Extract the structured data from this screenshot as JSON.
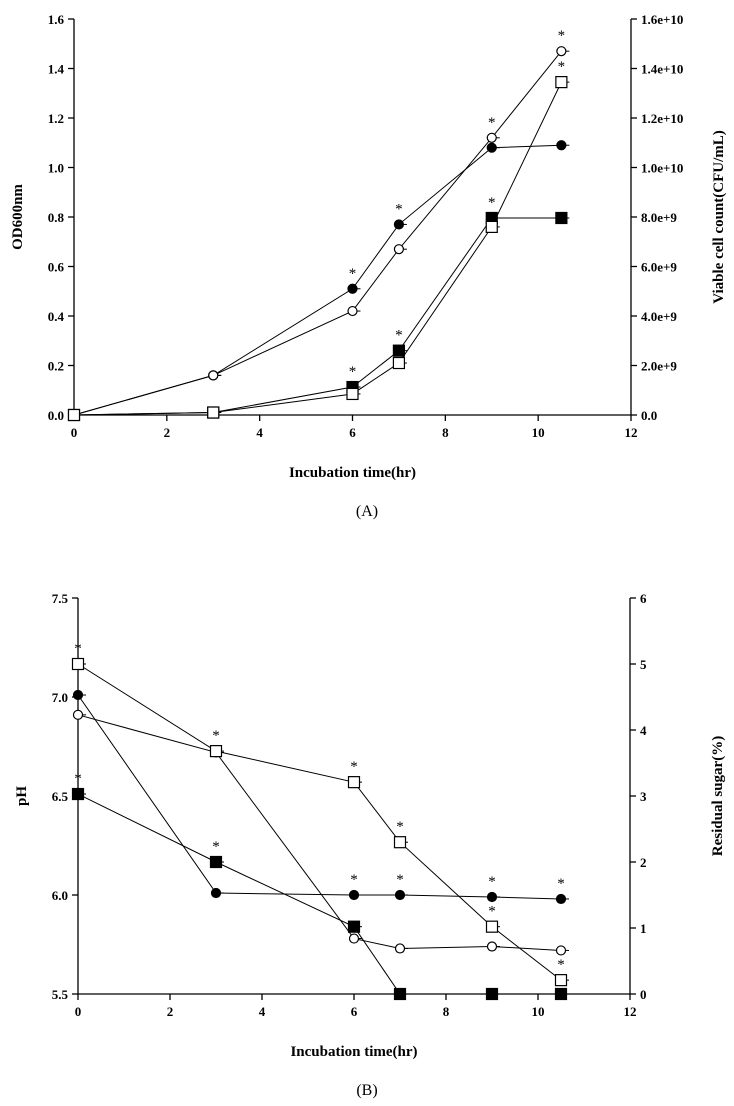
{
  "chart_data": [
    {
      "type": "line",
      "caption": "(A)",
      "xlabel": "Incubation time(hr)",
      "ylabel": "OD600nm",
      "ylabel_right": "Viable cell count(CFU/mL)",
      "xlim": [
        0,
        12
      ],
      "ylim": [
        0,
        1.6
      ],
      "ylim_right": [
        0,
        16000000000
      ],
      "xticks": [
        "0",
        "2",
        "4",
        "6",
        "8",
        "10",
        "12"
      ],
      "yticks": [
        "0.0",
        "0.2",
        "0.4",
        "0.6",
        "0.8",
        "1.0",
        "1.2",
        "1.4",
        "1.6"
      ],
      "yticks_right": [
        "0.0",
        "2.0e+9",
        "4.0e+9",
        "6.0e+9",
        "8.0e+9",
        "1.0e+10",
        "1.2e+10",
        "1.4e+10",
        "1.6e+10"
      ],
      "grid": false,
      "series": [
        {
          "marker": "filled-circle",
          "axis": "left",
          "x": [
            0,
            3,
            6,
            7,
            9,
            10.5
          ],
          "y": [
            0,
            0.16,
            0.51,
            0.77,
            1.08,
            1.09
          ],
          "stars": [
            6,
            7
          ]
        },
        {
          "marker": "open-circle",
          "axis": "left",
          "x": [
            0,
            3,
            6,
            7,
            9,
            10.5
          ],
          "y": [
            0,
            0.16,
            0.42,
            0.67,
            1.12,
            1.47
          ],
          "stars": [
            9,
            10.5
          ]
        },
        {
          "marker": "filled-square",
          "axis": "right",
          "x": [
            0,
            3,
            6,
            7,
            9,
            10.5
          ],
          "y": [
            0,
            100000000,
            1130000000,
            2600000000,
            7960000000,
            7960000000
          ],
          "stars": [
            6,
            7,
            9
          ]
        },
        {
          "marker": "open-square",
          "axis": "right",
          "x": [
            0,
            3,
            6,
            7,
            9,
            10.5
          ],
          "y": [
            0,
            100000000,
            850000000,
            2100000000,
            7600000000,
            13450000000
          ],
          "stars": [
            10.5
          ]
        }
      ],
      "annotation": "*"
    },
    {
      "type": "line",
      "caption": "(B)",
      "xlabel": "Incubation time(hr)",
      "ylabel": "pH",
      "ylabel_right": "Residual sugar(%)",
      "xlim": [
        0,
        12
      ],
      "ylim": [
        5.5,
        7.5
      ],
      "ylim_right": [
        0,
        6
      ],
      "xticks": [
        "0",
        "2",
        "4",
        "6",
        "8",
        "10",
        "12"
      ],
      "yticks": [
        "5.5",
        "6.0",
        "6.5",
        "7.0",
        "7.5"
      ],
      "yticks_right": [
        "0",
        "1",
        "2",
        "3",
        "4",
        "5",
        "6"
      ],
      "grid": false,
      "series": [
        {
          "marker": "filled-circle",
          "axis": "left",
          "x": [
            0,
            3,
            6,
            7,
            9,
            10.5
          ],
          "y": [
            7.01,
            6.01,
            6.0,
            6.0,
            5.99,
            5.98
          ],
          "stars": [
            6,
            7,
            9,
            10.5
          ]
        },
        {
          "marker": "open-circle",
          "axis": "left",
          "x": [
            0,
            3,
            6,
            7,
            9,
            10.5
          ],
          "y": [
            6.91,
            6.72,
            5.78,
            5.73,
            5.74,
            5.72
          ],
          "stars": []
        },
        {
          "marker": "filled-square",
          "axis": "right",
          "x": [
            0,
            3,
            6,
            7,
            9,
            10.5
          ],
          "y": [
            3.03,
            2.0,
            1.02,
            0,
            0,
            0
          ],
          "stars": [
            0,
            3
          ]
        },
        {
          "marker": "open-square",
          "axis": "right",
          "x": [
            0,
            3,
            6,
            7,
            9,
            10.5
          ],
          "y": [
            5.0,
            3.68,
            3.21,
            2.3,
            1.02,
            0.21
          ],
          "stars": [
            0,
            3,
            6,
            7,
            9,
            10.5
          ]
        }
      ],
      "annotation": "*"
    }
  ]
}
